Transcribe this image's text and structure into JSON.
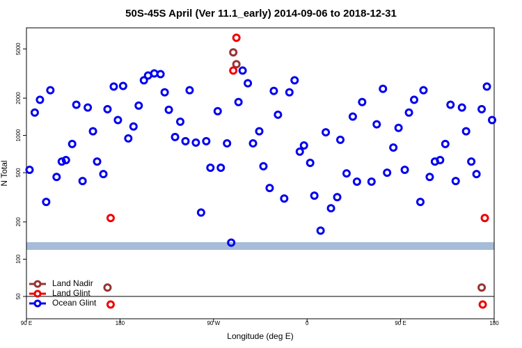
{
  "chart_data": {
    "type": "scatter",
    "title": "50S-45S April (Ver 11.1_early)   2014-09-06 to 2018-12-31",
    "xlabel": "Longitude (deg E)",
    "ylabel": "N Total",
    "xlim": [
      90,
      540
    ],
    "xticks": [
      {
        "value": 90,
        "label": "90 E"
      },
      {
        "value": 180,
        "label": "180"
      },
      {
        "value": 270,
        "label": "90 W"
      },
      {
        "value": 360,
        "label": "0"
      },
      {
        "value": 450,
        "label": "90 E"
      },
      {
        "value": 540,
        "label": "180"
      }
    ],
    "ylim": [
      33,
      7400
    ],
    "yticks": [
      50,
      100,
      200,
      500,
      1000,
      2000,
      5000
    ],
    "log_y": true,
    "reference_line": 50,
    "legend": "lower left",
    "series": [
      {
        "name": "Land Nadir",
        "color": "#993333",
        "x": [
          289,
          292,
          168,
          528
        ],
        "values": [
          4690,
          3760,
          59,
          59
        ]
      },
      {
        "name": "Land Glint",
        "color": "#ee0000",
        "x": [
          292,
          289,
          171,
          171,
          531,
          529
        ],
        "values": [
          6150,
          3340,
          215,
          43,
          215,
          43
        ]
      },
      {
        "name": "Ocean Glint",
        "color": "#0000ee",
        "x": [
          93,
          98,
          103,
          109,
          113,
          119,
          124,
          128,
          134,
          138,
          144,
          149,
          154,
          158,
          164,
          168,
          174,
          178,
          183,
          188,
          193,
          198,
          203,
          207,
          213,
          219,
          223,
          227,
          233,
          238,
          243,
          247,
          253,
          258,
          263,
          267,
          274,
          277,
          283,
          287,
          294,
          298,
          303,
          308,
          314,
          318,
          324,
          328,
          332,
          338,
          343,
          348,
          353,
          357,
          363,
          367,
          373,
          378,
          383,
          389,
          392,
          398,
          404,
          408,
          413,
          422,
          427,
          433,
          437,
          443,
          448,
          454,
          458,
          463,
          469,
          472,
          478,
          483,
          488,
          493,
          498,
          503,
          509,
          513,
          518,
          523,
          528,
          533,
          538
        ],
        "values": [
          527,
          1530,
          1940,
          290,
          2320,
          462,
          615,
          632,
          853,
          1770,
          428,
          1680,
          1080,
          615,
          487,
          1630,
          2480,
          1330,
          2510,
          946,
          1180,
          1740,
          2790,
          3050,
          3170,
          3130,
          2230,
          1610,
          971,
          1290,
          898,
          2320,
          875,
          238,
          898,
          548,
          1570,
          548,
          863,
          136,
          1860,
          3340,
          2640,
          863,
          1080,
          563,
          376,
          2290,
          1470,
          309,
          2230,
          2790,
          739,
          830,
          600,
          326,
          170,
          1060,
          258,
          317,
          921,
          493,
          1420,
          423,
          1860,
          423,
          1230,
          2380,
          500,
          798,
          1150,
          527,
          1530,
          1940,
          290,
          2320,
          462,
          615,
          632,
          853,
          1770,
          428,
          1680,
          1080,
          615,
          487,
          1630,
          2480,
          1330
        ]
      }
    ]
  }
}
